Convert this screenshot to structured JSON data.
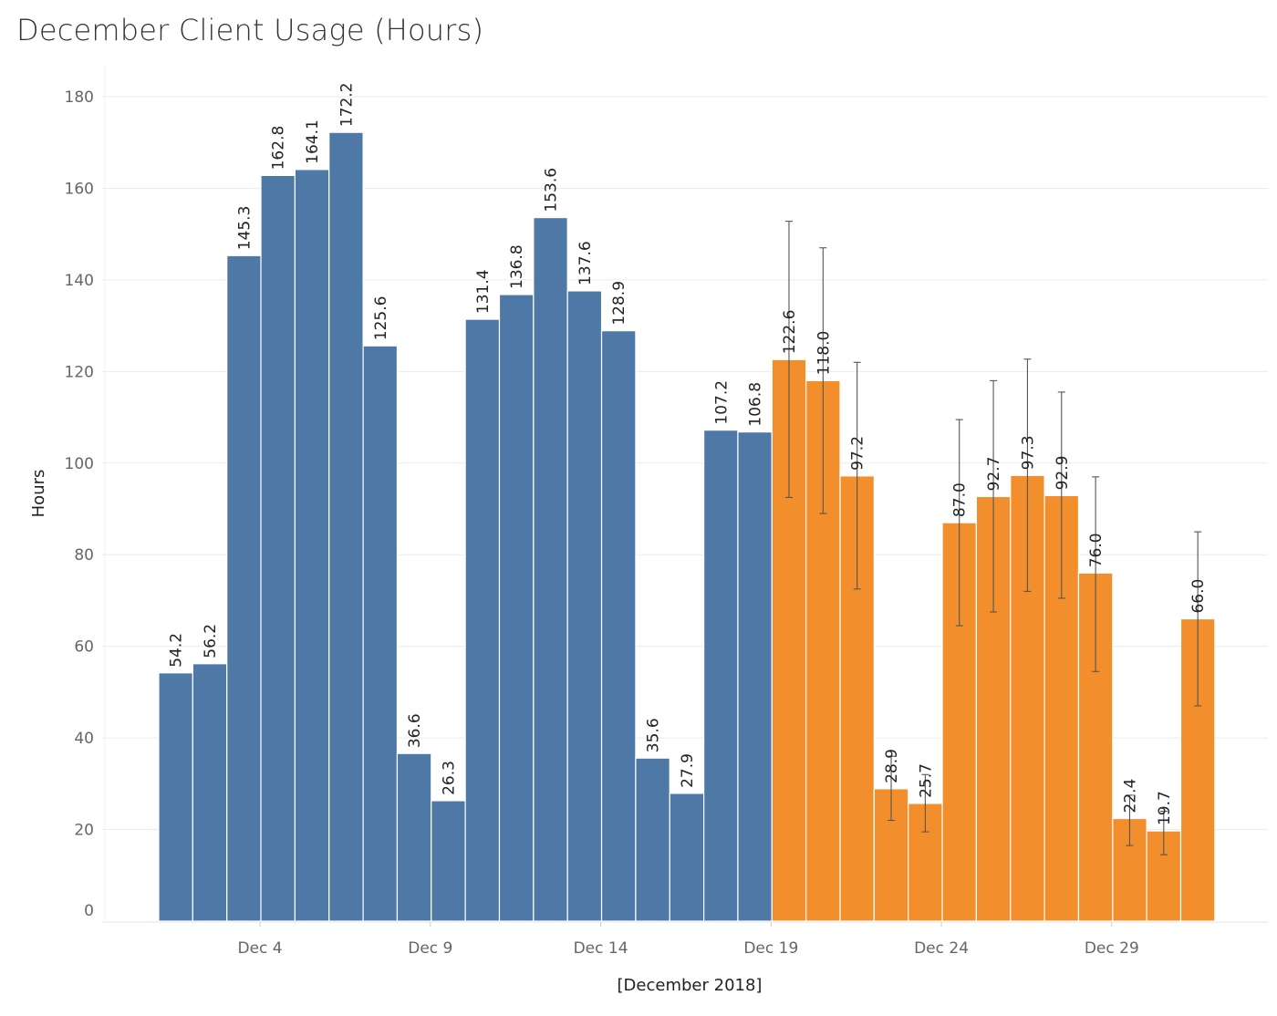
{
  "chart_data": {
    "type": "bar",
    "title": "December Client Usage (Hours)",
    "xlabel": "[December 2018]",
    "ylabel": "Hours",
    "ylim": [
      0,
      180
    ],
    "y_ticks": [
      0,
      20,
      40,
      60,
      80,
      100,
      120,
      140,
      160,
      180
    ],
    "x_ticks": [
      {
        "day": 4,
        "label": "Dec 4"
      },
      {
        "day": 9,
        "label": "Dec 9"
      },
      {
        "day": 14,
        "label": "Dec 14"
      },
      {
        "day": 19,
        "label": "Dec 19"
      },
      {
        "day": 24,
        "label": "Dec 24"
      },
      {
        "day": 29,
        "label": "Dec 29"
      }
    ],
    "grid": true,
    "colors": {
      "actual": "#4e79a7",
      "forecast": "#f28e2b",
      "error_bar": "#555555"
    },
    "series": [
      {
        "kind": "actual",
        "days": [
          1,
          2,
          3,
          4,
          5,
          6,
          7,
          8,
          9,
          10,
          11,
          12,
          13,
          14,
          15,
          16,
          17,
          18
        ],
        "values": [
          54.2,
          56.2,
          145.3,
          162.8,
          164.1,
          172.2,
          125.6,
          36.6,
          26.3,
          131.4,
          136.8,
          153.6,
          137.6,
          128.9,
          35.6,
          27.9,
          107.2,
          106.8
        ],
        "labels": [
          "54.2",
          "56.2",
          "145.3",
          "162.8",
          "164.1",
          "172.2",
          "125.6",
          "36.6",
          "26.3",
          "131.4",
          "136.8",
          "153.6",
          "137.6",
          "128.9",
          "35.6",
          "27.9",
          "107.2",
          "106.8"
        ]
      },
      {
        "kind": "forecast",
        "days": [
          19,
          20,
          21,
          22,
          23,
          24,
          25,
          26,
          27,
          28,
          29,
          30,
          31
        ],
        "values": [
          122.6,
          118.0,
          97.2,
          28.9,
          25.7,
          87.0,
          92.7,
          97.3,
          92.9,
          76.0,
          22.4,
          19.7,
          66.0
        ],
        "labels": [
          "122.6",
          "118.0",
          "97.2",
          "28.9",
          "25.7",
          "87.0",
          "92.7",
          "97.3",
          "92.9",
          "76.0",
          "22.4",
          "19.7",
          "66.0"
        ],
        "error_low": [
          92.5,
          89.0,
          72.5,
          22.0,
          19.5,
          64.5,
          67.5,
          72.0,
          70.5,
          54.5,
          16.5,
          14.5,
          47.0
        ],
        "error_high": [
          152.8,
          147.0,
          122.0,
          36.0,
          32.0,
          109.5,
          118.0,
          122.7,
          115.5,
          97.0,
          27.5,
          24.0,
          85.0
        ]
      }
    ]
  }
}
